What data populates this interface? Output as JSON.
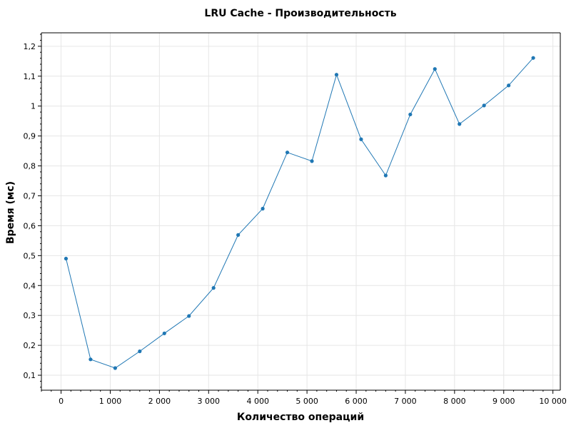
{
  "chart_data": {
    "type": "line",
    "title": "LRU Cache - Производительность",
    "xlabel": "Количество операций",
    "ylabel": "Время (мс)",
    "xlim": [
      -400,
      10150
    ],
    "ylim": [
      0.05,
      1.245
    ],
    "x_ticks": [
      0,
      1000,
      2000,
      3000,
      4000,
      5000,
      6000,
      7000,
      8000,
      9000,
      10000
    ],
    "x_tick_labels": [
      "0",
      "1 000",
      "2 000",
      "3 000",
      "4 000",
      "5 000",
      "6 000",
      "7 000",
      "8 000",
      "9 000",
      "10 000"
    ],
    "y_ticks": [
      0.1,
      0.2,
      0.3,
      0.4,
      0.5,
      0.6,
      0.7,
      0.8,
      0.9,
      1.0,
      1.1,
      1.2
    ],
    "y_tick_labels": [
      "0,1",
      "0,2",
      "0,3",
      "0,4",
      "0,5",
      "0,6",
      "0,7",
      "0,8",
      "0,9",
      "1",
      "1,1",
      "1,2"
    ],
    "grid": true,
    "series": [
      {
        "color": "#1f77b4",
        "x": [
          100,
          600,
          1100,
          1600,
          2100,
          2600,
          3100,
          3600,
          4100,
          4600,
          5100,
          5600,
          6100,
          6600,
          7100,
          7600,
          8100,
          8600,
          9100,
          9600
        ],
        "y": [
          0.49,
          0.153,
          0.124,
          0.18,
          0.24,
          0.298,
          0.392,
          0.569,
          0.657,
          0.845,
          0.816,
          1.105,
          0.889,
          0.768,
          0.972,
          1.124,
          0.94,
          1.002,
          1.069,
          1.161
        ]
      }
    ]
  }
}
